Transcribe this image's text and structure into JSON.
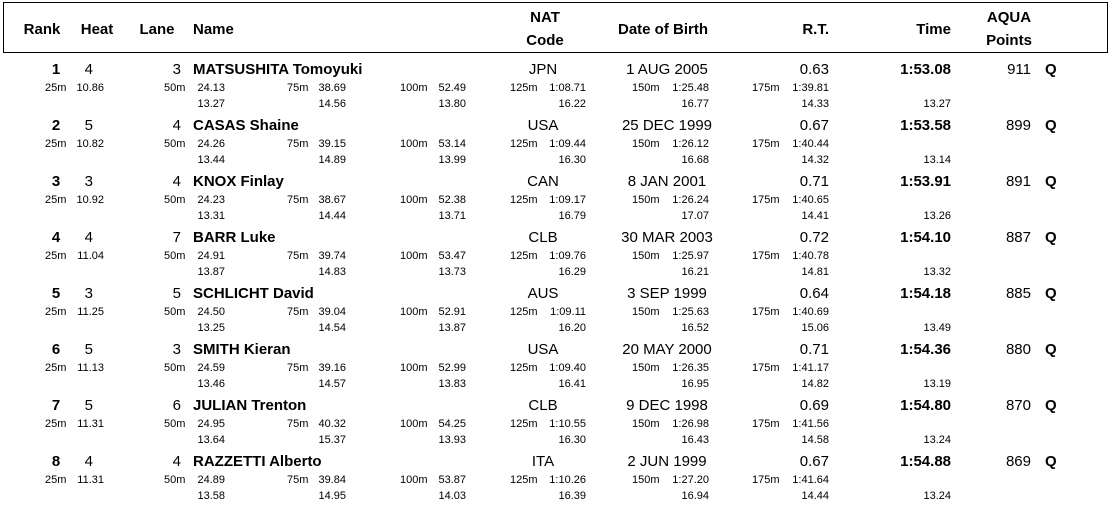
{
  "header": [
    [
      "Rank"
    ],
    [
      "Heat"
    ],
    [
      "Lane"
    ],
    [
      "Name"
    ],
    [
      "NAT",
      "Code"
    ],
    [
      "Date of Birth"
    ],
    [
      "R.T."
    ],
    [
      "Time"
    ],
    [
      "AQUA",
      "Points"
    ]
  ],
  "rows": [
    {
      "rank": "1",
      "heat": "4",
      "lane": "3",
      "name": "MATSUSHITA Tomoyuki",
      "nat": "JPN",
      "dob": "1 AUG 2005",
      "rt": "0.63",
      "time": "1:53.08",
      "points": "911",
      "q": "Q",
      "splits": [
        {
          "d": "25m",
          "t": "10.86"
        },
        {
          "d": "50m",
          "t": "24.13",
          "s": "13.27"
        },
        {
          "d": "75m",
          "t": "38.69",
          "s": "14.56"
        },
        {
          "d": "100m",
          "t": "52.49",
          "s": "13.80"
        },
        {
          "d": "125m",
          "t": "1:08.71",
          "s": "16.22"
        },
        {
          "d": "150m",
          "t": "1:25.48",
          "s": "16.77"
        },
        {
          "d": "175m",
          "t": "1:39.81",
          "s": "14.33"
        }
      ],
      "last": "13.27"
    },
    {
      "rank": "2",
      "heat": "5",
      "lane": "4",
      "name": "CASAS Shaine",
      "nat": "USA",
      "dob": "25 DEC 1999",
      "rt": "0.67",
      "time": "1:53.58",
      "points": "899",
      "q": "Q",
      "splits": [
        {
          "d": "25m",
          "t": "10.82"
        },
        {
          "d": "50m",
          "t": "24.26",
          "s": "13.44"
        },
        {
          "d": "75m",
          "t": "39.15",
          "s": "14.89"
        },
        {
          "d": "100m",
          "t": "53.14",
          "s": "13.99"
        },
        {
          "d": "125m",
          "t": "1:09.44",
          "s": "16.30"
        },
        {
          "d": "150m",
          "t": "1:26.12",
          "s": "16.68"
        },
        {
          "d": "175m",
          "t": "1:40.44",
          "s": "14.32"
        }
      ],
      "last": "13.14"
    },
    {
      "rank": "3",
      "heat": "3",
      "lane": "4",
      "name": "KNOX Finlay",
      "nat": "CAN",
      "dob": "8 JAN 2001",
      "rt": "0.71",
      "time": "1:53.91",
      "points": "891",
      "q": "Q",
      "splits": [
        {
          "d": "25m",
          "t": "10.92"
        },
        {
          "d": "50m",
          "t": "24.23",
          "s": "13.31"
        },
        {
          "d": "75m",
          "t": "38.67",
          "s": "14.44"
        },
        {
          "d": "100m",
          "t": "52.38",
          "s": "13.71"
        },
        {
          "d": "125m",
          "t": "1:09.17",
          "s": "16.79"
        },
        {
          "d": "150m",
          "t": "1:26.24",
          "s": "17.07"
        },
        {
          "d": "175m",
          "t": "1:40.65",
          "s": "14.41"
        }
      ],
      "last": "13.26"
    },
    {
      "rank": "4",
      "heat": "4",
      "lane": "7",
      "name": "BARR Luke",
      "nat": "CLB",
      "dob": "30 MAR 2003",
      "rt": "0.72",
      "time": "1:54.10",
      "points": "887",
      "q": "Q",
      "splits": [
        {
          "d": "25m",
          "t": "11.04"
        },
        {
          "d": "50m",
          "t": "24.91",
          "s": "13.87"
        },
        {
          "d": "75m",
          "t": "39.74",
          "s": "14.83"
        },
        {
          "d": "100m",
          "t": "53.47",
          "s": "13.73"
        },
        {
          "d": "125m",
          "t": "1:09.76",
          "s": "16.29"
        },
        {
          "d": "150m",
          "t": "1:25.97",
          "s": "16.21"
        },
        {
          "d": "175m",
          "t": "1:40.78",
          "s": "14.81"
        }
      ],
      "last": "13.32"
    },
    {
      "rank": "5",
      "heat": "3",
      "lane": "5",
      "name": "SCHLICHT David",
      "nat": "AUS",
      "dob": "3 SEP 1999",
      "rt": "0.64",
      "time": "1:54.18",
      "points": "885",
      "q": "Q",
      "splits": [
        {
          "d": "25m",
          "t": "11.25"
        },
        {
          "d": "50m",
          "t": "24.50",
          "s": "13.25"
        },
        {
          "d": "75m",
          "t": "39.04",
          "s": "14.54"
        },
        {
          "d": "100m",
          "t": "52.91",
          "s": "13.87"
        },
        {
          "d": "125m",
          "t": "1:09.11",
          "s": "16.20"
        },
        {
          "d": "150m",
          "t": "1:25.63",
          "s": "16.52"
        },
        {
          "d": "175m",
          "t": "1:40.69",
          "s": "15.06"
        }
      ],
      "last": "13.49"
    },
    {
      "rank": "6",
      "heat": "5",
      "lane": "3",
      "name": "SMITH Kieran",
      "nat": "USA",
      "dob": "20 MAY 2000",
      "rt": "0.71",
      "time": "1:54.36",
      "points": "880",
      "q": "Q",
      "splits": [
        {
          "d": "25m",
          "t": "11.13"
        },
        {
          "d": "50m",
          "t": "24.59",
          "s": "13.46"
        },
        {
          "d": "75m",
          "t": "39.16",
          "s": "14.57"
        },
        {
          "d": "100m",
          "t": "52.99",
          "s": "13.83"
        },
        {
          "d": "125m",
          "t": "1:09.40",
          "s": "16.41"
        },
        {
          "d": "150m",
          "t": "1:26.35",
          "s": "16.95"
        },
        {
          "d": "175m",
          "t": "1:41.17",
          "s": "14.82"
        }
      ],
      "last": "13.19"
    },
    {
      "rank": "7",
      "heat": "5",
      "lane": "6",
      "name": "JULIAN Trenton",
      "nat": "CLB",
      "dob": "9 DEC 1998",
      "rt": "0.69",
      "time": "1:54.80",
      "points": "870",
      "q": "Q",
      "splits": [
        {
          "d": "25m",
          "t": "11.31"
        },
        {
          "d": "50m",
          "t": "24.95",
          "s": "13.64"
        },
        {
          "d": "75m",
          "t": "40.32",
          "s": "15.37"
        },
        {
          "d": "100m",
          "t": "54.25",
          "s": "13.93"
        },
        {
          "d": "125m",
          "t": "1:10.55",
          "s": "16.30"
        },
        {
          "d": "150m",
          "t": "1:26.98",
          "s": "16.43"
        },
        {
          "d": "175m",
          "t": "1:41.56",
          "s": "14.58"
        }
      ],
      "last": "13.24"
    },
    {
      "rank": "8",
      "heat": "4",
      "lane": "4",
      "name": "RAZZETTI Alberto",
      "nat": "ITA",
      "dob": "2 JUN 1999",
      "rt": "0.67",
      "time": "1:54.88",
      "points": "869",
      "q": "Q",
      "splits": [
        {
          "d": "25m",
          "t": "11.31"
        },
        {
          "d": "50m",
          "t": "24.89",
          "s": "13.58"
        },
        {
          "d": "75m",
          "t": "39.84",
          "s": "14.95"
        },
        {
          "d": "100m",
          "t": "53.87",
          "s": "14.03"
        },
        {
          "d": "125m",
          "t": "1:10.26",
          "s": "16.39"
        },
        {
          "d": "150m",
          "t": "1:27.20",
          "s": "16.94"
        },
        {
          "d": "175m",
          "t": "1:41.64",
          "s": "14.44"
        }
      ],
      "last": "13.24"
    }
  ]
}
